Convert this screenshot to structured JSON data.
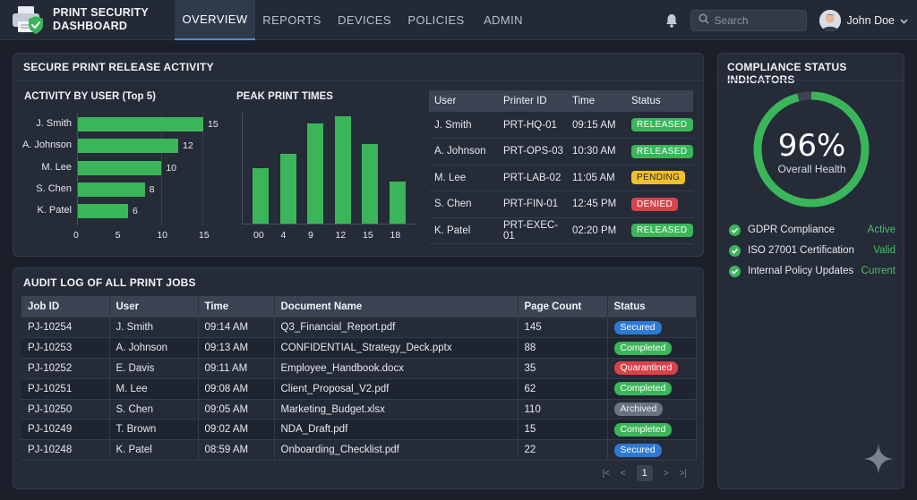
{
  "app": {
    "title": "PRINT SECURITY DASHBOARD",
    "nav": [
      "OVERVIEW",
      "REPORTS",
      "DEVICES",
      "POLICIES",
      "ADMIN"
    ],
    "active_tab": "OVERVIEW",
    "search_placeholder": "Search",
    "user_name": "John Doe"
  },
  "release": {
    "title": "SECURE PRINT RELEASE ACTIVITY",
    "activity_title": "ACTIVITY BY USER (Top 5)",
    "peak_title": "PEAK PRINT TIMES"
  },
  "chart_data": [
    {
      "type": "bar",
      "orientation": "horizontal",
      "title": "ACTIVITY BY USER (Top 5)",
      "categories": [
        "J. Smith",
        "A. Johnson",
        "M. Lee",
        "S. Chen",
        "K. Patel"
      ],
      "values": [
        15,
        12,
        10,
        8,
        6
      ],
      "xlim": [
        0,
        15
      ],
      "xticks": [
        "0",
        "5",
        "10",
        "15"
      ],
      "color": "#3bb55a"
    },
    {
      "type": "bar",
      "title": "PEAK PRINT TIMES",
      "categories": [
        "00",
        "4",
        "9",
        "12",
        "15",
        "18"
      ],
      "values": [
        40,
        50,
        72,
        77,
        57,
        30
      ],
      "ylim": [
        0,
        80
      ],
      "color": "#3bb55a"
    }
  ],
  "release_table": {
    "headers": [
      "User",
      "Printer ID",
      "Time",
      "Status"
    ],
    "rows": [
      [
        "J. Smith",
        "PRT-HQ-01",
        "09:15 AM",
        "RELEASED"
      ],
      [
        "A. Johnson",
        "PRT-OPS-03",
        "10:30 AM",
        "RELEASED"
      ],
      [
        "M. Lee",
        "PRT-LAB-02",
        "11:05 AM",
        "PENDING"
      ],
      [
        "S. Chen",
        "PRT-FIN-01",
        "12:45 PM",
        "DENIED"
      ],
      [
        "K. Patel",
        "PRT-EXEC-01",
        "02:20 PM",
        "RELEASED"
      ]
    ]
  },
  "audit": {
    "title": "AUDIT LOG OF ALL PRINT JOBS",
    "headers": [
      "Job ID",
      "User",
      "Time",
      "Document Name",
      "Page Count",
      "Status"
    ],
    "rows": [
      [
        "PJ-10254",
        "J. Smith",
        "09:14 AM",
        "Q3_Financial_Report.pdf",
        "145",
        "Secured"
      ],
      [
        "PJ-10253",
        "A. Johnson",
        "09:13 AM",
        "CONFIDENTIAL_Strategy_Deck.pptx",
        "88",
        "Completed"
      ],
      [
        "PJ-10252",
        "E. Davis",
        "09:11 AM",
        "Employee_Handbook.docx",
        "35",
        "Quarantined"
      ],
      [
        "PJ-10251",
        "M. Lee",
        "09:08 AM",
        "Client_Proposal_V2.pdf",
        "62",
        "Completed"
      ],
      [
        "PJ-10250",
        "S. Chen",
        "09:05 AM",
        "Marketing_Budget.xlsx",
        "110",
        "Archived"
      ],
      [
        "PJ-10249",
        "T. Brown",
        "09:02 AM",
        "NDA_Draft.pdf",
        "15",
        "Completed"
      ],
      [
        "PJ-10248",
        "K. Patel",
        "08:59 AM",
        "Onboarding_Checklist.pdf",
        "22",
        "Secured"
      ]
    ],
    "pager": {
      "current": "1",
      "first": "|<",
      "prev": "<",
      "next": ">",
      "last": ">|"
    }
  },
  "compliance": {
    "title": "COMPLIANCE STATUS INDICATORS",
    "health_value": "96%",
    "health_fraction": 0.96,
    "health_label": "Overall Health",
    "items": [
      {
        "label": "GDPR Compliance",
        "status": "Active"
      },
      {
        "label": "ISO 27001 Certification",
        "status": "Valid"
      },
      {
        "label": "Internal Policy Updates",
        "status": "Current"
      }
    ]
  },
  "colors": {
    "accent_green": "#3bb55a",
    "pending_yellow": "#f2c029",
    "denied_red": "#d8424a",
    "secured_blue": "#2d79d4",
    "active_tab": "#2f3a4d"
  }
}
